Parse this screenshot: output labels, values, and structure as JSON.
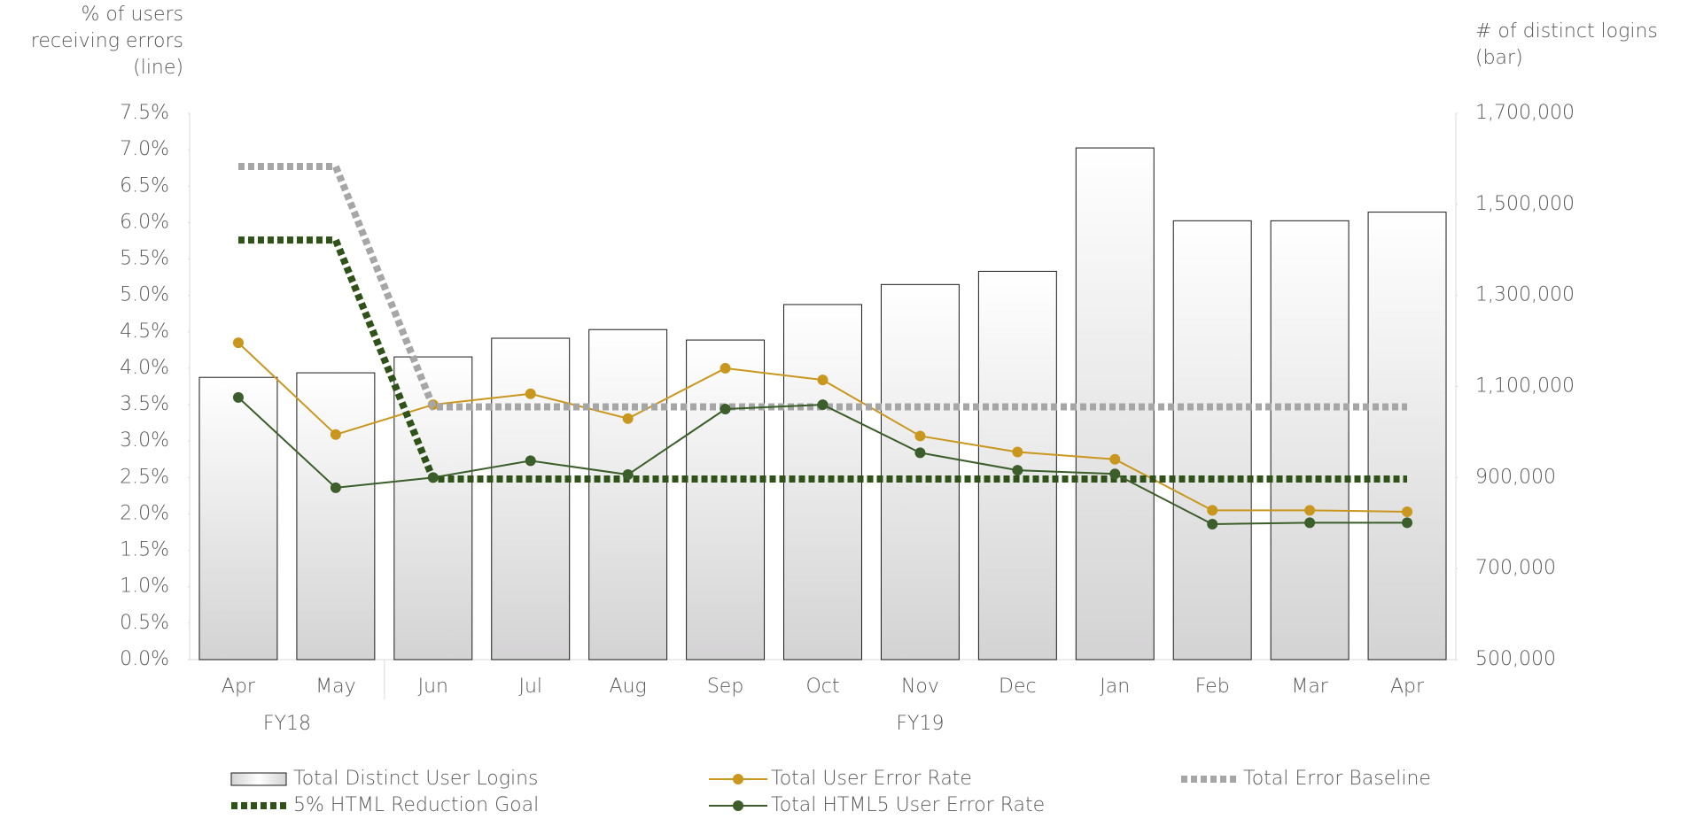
{
  "chart_data": {
    "type": "bar",
    "y_label": [
      "% of users",
      "receiving errors",
      "(line)"
    ],
    "y2_label": [
      "# of distinct logins",
      "(bar)"
    ],
    "categories": [
      "Apr",
      "May",
      "Jun",
      "Jul",
      "Aug",
      "Sep",
      "Oct",
      "Nov",
      "Dec",
      "Jan",
      "Feb",
      "Mar",
      "Apr"
    ],
    "groups": [
      {
        "label": "FY18",
        "count": 2
      },
      {
        "label": "FY19",
        "count": 11
      }
    ],
    "ylim": [
      0,
      7.5
    ],
    "yticks": [
      {
        "value": 0,
        "label": "0.0%"
      },
      {
        "value": 0.5,
        "label": "0.5%"
      },
      {
        "value": 1,
        "label": "1.0%"
      },
      {
        "value": 1.5,
        "label": "1.5%"
      },
      {
        "value": 2,
        "label": "2.0%"
      },
      {
        "value": 2.5,
        "label": "2.5%"
      },
      {
        "value": 3,
        "label": "3.0%"
      },
      {
        "value": 3.5,
        "label": "3.5%"
      },
      {
        "value": 4,
        "label": "4.0%"
      },
      {
        "value": 4.5,
        "label": "4.5%"
      },
      {
        "value": 5,
        "label": "5.0%"
      },
      {
        "value": 5.5,
        "label": "5.5%"
      },
      {
        "value": 6,
        "label": "6.0%"
      },
      {
        "value": 6.5,
        "label": "6.5%"
      },
      {
        "value": 7,
        "label": "7.0%"
      },
      {
        "value": 7.5,
        "label": "7.5%"
      }
    ],
    "y2lim": [
      500000,
      1700000
    ],
    "y2ticks": [
      {
        "value": 500000,
        "label": "500,000"
      },
      {
        "value": 700000,
        "label": "700,000"
      },
      {
        "value": 900000,
        "label": "900,000"
      },
      {
        "value": 1100000,
        "label": "1,100,000"
      },
      {
        "value": 1300000,
        "label": "1,300,000"
      },
      {
        "value": 1500000,
        "label": "1,500,000"
      },
      {
        "value": 1700000,
        "label": "1,700,000"
      }
    ],
    "series": [
      {
        "name": "Total Distinct User Logins",
        "type": "bar",
        "axis": "y2",
        "color": "#d4d3d4",
        "values": [
          1120000,
          1130000,
          1165000,
          1206000,
          1225000,
          1202000,
          1280000,
          1324000,
          1353000,
          1624000,
          1464000,
          1464000,
          1483000
        ]
      },
      {
        "name": "Total User Error Rate",
        "type": "line",
        "marker": true,
        "color": "#c9971e",
        "values": [
          4.35,
          3.09,
          3.5,
          3.65,
          3.31,
          4.0,
          3.84,
          3.07,
          2.85,
          2.75,
          2.05,
          2.05,
          2.03
        ]
      },
      {
        "name": "Total Error Baseline",
        "type": "line",
        "dash": true,
        "color": "#a6a6a6",
        "values": [
          6.77,
          6.77,
          3.47,
          3.47,
          3.47,
          3.47,
          3.47,
          3.47,
          3.47,
          3.47,
          3.47,
          3.47,
          3.47
        ]
      },
      {
        "name": "5% HTML Reduction Goal",
        "type": "line",
        "dash": true,
        "color": "#2f5218",
        "values": [
          5.76,
          5.76,
          2.48,
          2.48,
          2.48,
          2.48,
          2.48,
          2.48,
          2.48,
          2.48,
          2.48,
          2.48,
          2.48
        ]
      },
      {
        "name": "Total HTML5 User Error Rate",
        "type": "line",
        "marker": true,
        "color": "#3b5e2b",
        "values": [
          3.6,
          2.36,
          2.5,
          2.73,
          2.54,
          3.44,
          3.5,
          2.84,
          2.6,
          2.55,
          1.86,
          1.88,
          1.88
        ]
      }
    ]
  }
}
